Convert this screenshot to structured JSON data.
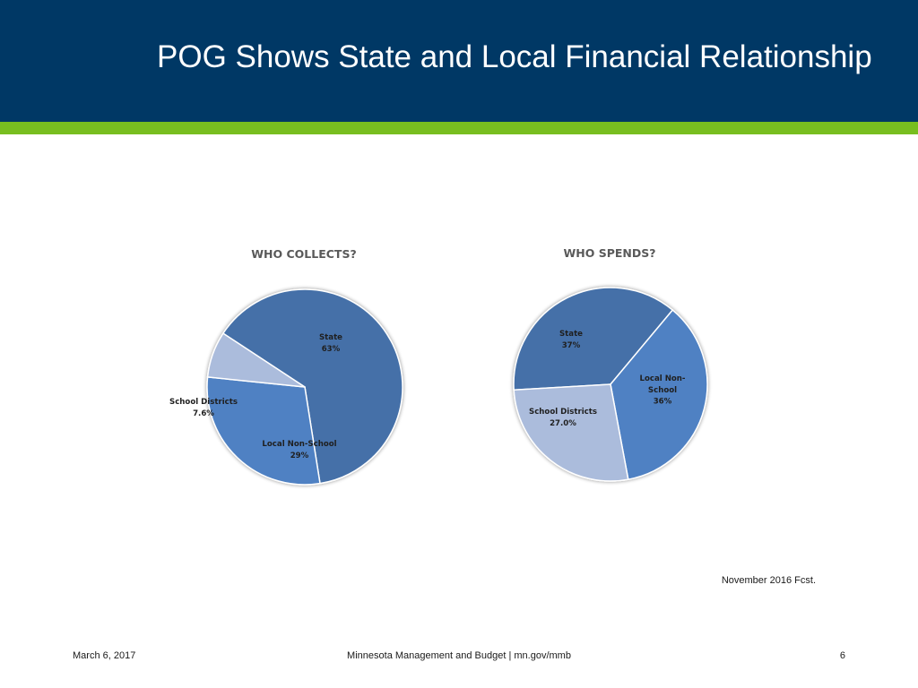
{
  "slide": {
    "title": "POG Shows State and Local Financial Relationship",
    "note": "November 2016 Fcst.",
    "footer_date": "March 6, 2017",
    "footer_center": "Minnesota Management and Budget  |  mn.gov/mmb",
    "page_number": "6"
  },
  "colors": {
    "header": "#003865",
    "accent": "#78be20",
    "state": "#4470a8",
    "local_non_school": "#4f81c3",
    "school_districts": "#abbcdc"
  },
  "chart_data": [
    {
      "type": "pie",
      "title": "WHO COLLECTS?",
      "slices": [
        {
          "key": "state",
          "label_lines": [
            "State",
            "63%"
          ],
          "value": 63
        },
        {
          "key": "local_non_school",
          "label_lines": [
            "Local Non-School",
            "29%"
          ],
          "value": 29
        },
        {
          "key": "school_districts",
          "label_lines": [
            "School Districts",
            "7.6%"
          ],
          "value": 7.6
        }
      ]
    },
    {
      "type": "pie",
      "title": "WHO SPENDS?",
      "slices": [
        {
          "key": "state",
          "label_lines": [
            "State",
            "37%"
          ],
          "value": 37
        },
        {
          "key": "local_non_school",
          "label_lines": [
            "Local Non-",
            "School",
            "36%"
          ],
          "value": 36
        },
        {
          "key": "school_districts",
          "label_lines": [
            "School Districts",
            "27.0%"
          ],
          "value": 27.0
        }
      ]
    }
  ]
}
